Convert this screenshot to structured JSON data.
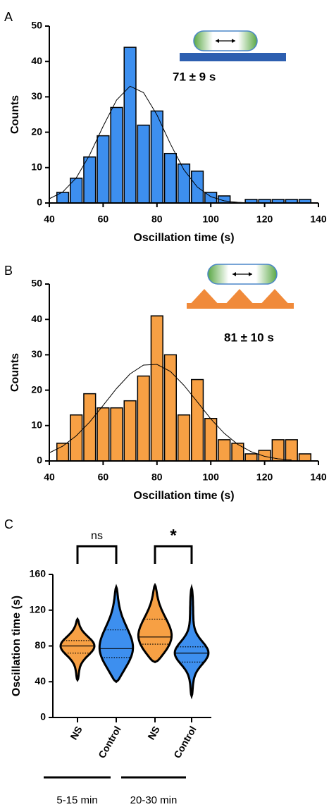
{
  "chart_data": [
    {
      "type": "histogram",
      "panel": "A",
      "annotation": "71 ± 9 s",
      "x_label": "Oscillation time (s)",
      "y_label": "Counts",
      "bins": [
        42.5,
        47.5,
        52.5,
        57.5,
        62.5,
        67.5,
        72.5,
        77.5,
        82.5,
        87.5,
        92.5,
        97.5,
        102.5,
        107.5,
        112.5,
        117.5,
        122.5,
        127.5,
        132.5,
        137.5
      ],
      "values": [
        3,
        7,
        13,
        19,
        27,
        44,
        22,
        26,
        14,
        11,
        9,
        3,
        2,
        0,
        1,
        1,
        1,
        1,
        1
      ],
      "color": "#3d8fef",
      "curve": {
        "color": "#000000",
        "x": [
          40,
          45,
          50,
          55,
          60,
          65,
          70,
          75,
          80,
          85,
          90,
          95,
          100,
          105,
          110,
          115
        ],
        "y": [
          1.2,
          3.1,
          7.1,
          13.6,
          21.7,
          29.1,
          33.0,
          31.2,
          24.9,
          16.7,
          9.4,
          4.5,
          1.8,
          0.6,
          0.2,
          0
        ]
      },
      "xlim": [
        40,
        140
      ],
      "xticks": [
        40,
        60,
        80,
        100,
        120,
        140
      ],
      "ylim": [
        0,
        50
      ],
      "yticks": [
        0,
        10,
        20,
        30,
        40,
        50
      ]
    },
    {
      "type": "histogram",
      "panel": "B",
      "annotation": "81 ± 10 s",
      "x_label": "Oscillation time (s)",
      "y_label": "Counts",
      "bins": [
        42.5,
        47.5,
        52.5,
        57.5,
        62.5,
        67.5,
        72.5,
        77.5,
        82.5,
        87.5,
        92.5,
        97.5,
        102.5,
        107.5,
        112.5,
        117.5,
        122.5,
        127.5,
        132.5,
        137.5
      ],
      "values": [
        5,
        13,
        19,
        15,
        15,
        17,
        24,
        41,
        30,
        13,
        23,
        12,
        6,
        5,
        2,
        3,
        6,
        6,
        2
      ],
      "color": "#f7a044",
      "curve": {
        "color": "#000000",
        "x": [
          40,
          45,
          50,
          55,
          60,
          65,
          70,
          75,
          80,
          85,
          90,
          95,
          100,
          105,
          110,
          115,
          120,
          125,
          130
        ],
        "y": [
          2.3,
          4.2,
          7.1,
          11.0,
          15.7,
          20.5,
          24.6,
          27.1,
          27.3,
          25.3,
          21.4,
          16.7,
          11.9,
          7.8,
          4.7,
          2.6,
          1.3,
          0.6,
          0.3
        ]
      },
      "xlim": [
        40,
        140
      ],
      "xticks": [
        40,
        60,
        80,
        100,
        120,
        140
      ],
      "ylim": [
        0,
        50
      ],
      "yticks": [
        0,
        10,
        20,
        30,
        40,
        50
      ]
    },
    {
      "type": "violin",
      "panel": "C",
      "y_label": "Oscillation time (s)",
      "violins": [
        {
          "category": "NS",
          "color": "#f7a044",
          "min": 42,
          "q1": 72,
          "median": 80,
          "q3": 86,
          "max": 110
        },
        {
          "category": "Control",
          "color": "#3d8fef",
          "min": 40,
          "q1": 67,
          "median": 77,
          "q3": 98,
          "max": 146
        },
        {
          "category": "NS",
          "color": "#f7a044",
          "min": 62,
          "q1": 82,
          "median": 90,
          "q3": 110,
          "max": 148
        },
        {
          "category": "Control",
          "color": "#3d8fef",
          "min": 24,
          "q1": 62,
          "median": 72,
          "q3": 79,
          "max": 145
        }
      ],
      "comparisons": [
        "ns",
        "*"
      ],
      "time_groups": [
        "5-15 min",
        "20-30 min"
      ],
      "ylim": [
        0,
        160
      ],
      "yticks": [
        0,
        40,
        80,
        120,
        160
      ]
    }
  ]
}
